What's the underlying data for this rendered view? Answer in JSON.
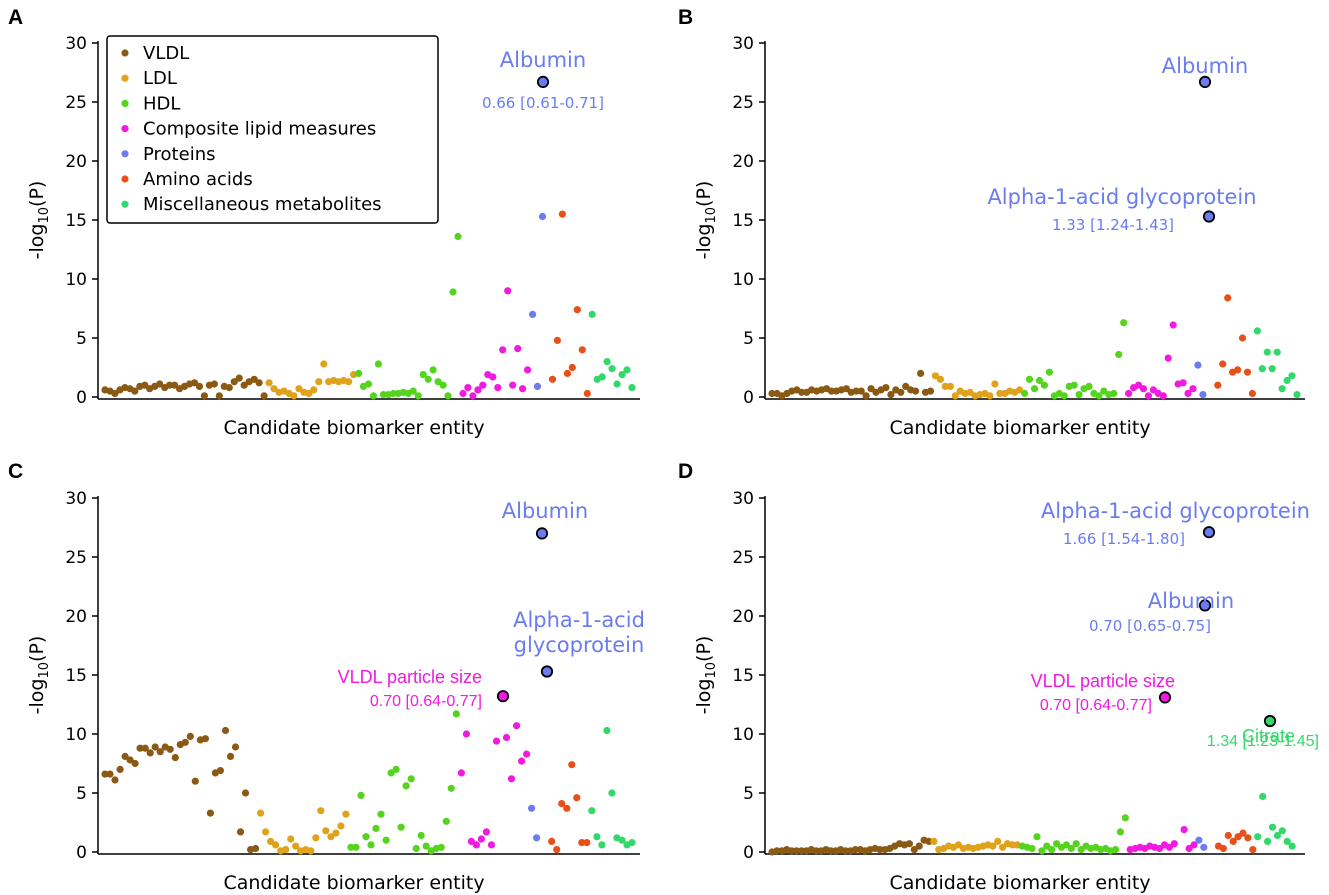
{
  "chart_data": [
    {
      "panel": "A",
      "type": "scatter",
      "xlabel": "Candidate biomarker entity",
      "ylabel": "-log10(P)",
      "ylim": [
        0,
        30
      ],
      "yticks": [
        "0",
        "5",
        "10",
        "15",
        "20",
        "25",
        "30"
      ],
      "legend": {
        "placement": "top-left",
        "entries": [
          {
            "name": "VLDL",
            "color": "#8a5a14"
          },
          {
            "name": "LDL",
            "color": "#e0a21a"
          },
          {
            "name": "HDL",
            "color": "#55d41d"
          },
          {
            "name": "Composite lipid measures",
            "color": "#f01ae0"
          },
          {
            "name": "Proteins",
            "color": "#6a7cf0"
          },
          {
            "name": "Amino acids",
            "color": "#e8501a"
          },
          {
            "name": "Miscellaneous metabolites",
            "color": "#33d86a"
          }
        ]
      },
      "series": [
        {
          "name": "VLDL",
          "values": [
            0.6,
            0.5,
            0.3,
            0.6,
            0.8,
            0.7,
            0.5,
            0.9,
            1.0,
            0.7,
            0.9,
            1.1,
            0.8,
            1.0,
            1.0,
            0.7,
            0.9,
            1.1,
            1.2,
            0.9,
            0.1,
            1.0,
            1.1,
            0.1,
            0.9,
            0.8,
            1.3,
            1.6,
            1.0,
            1.3,
            1.5,
            1.2,
            0.1
          ]
        },
        {
          "name": "LDL",
          "values": [
            1.2,
            0.7,
            0.4,
            0.5,
            0.3,
            0.1,
            0.7,
            0.4,
            0.3,
            0.6,
            1.3,
            2.8,
            1.3,
            1.4,
            1.3,
            1.4,
            1.3,
            1.9
          ]
        },
        {
          "name": "HDL",
          "values": [
            2.0,
            0.9,
            1.1,
            0.1,
            2.8,
            0.2,
            0.2,
            0.3,
            0.3,
            0.4,
            0.3,
            0.5,
            0.1,
            1.9,
            1.5,
            2.3,
            1.3,
            1.0,
            0.1,
            8.9,
            13.6
          ]
        },
        {
          "name": "Composite lipid measures",
          "values": [
            0.3,
            0.8,
            0.1,
            0.6,
            1.0,
            1.9,
            1.7,
            0.8,
            4.0,
            9.0,
            1.0,
            4.1,
            0.7,
            2.3
          ]
        },
        {
          "name": "Proteins",
          "values": [
            7.0,
            0.9,
            15.3,
            26.7
          ]
        },
        {
          "name": "Amino acids",
          "values": [
            1.5,
            4.8,
            15.5,
            2.0,
            2.5,
            7.4,
            4.0,
            0.3
          ]
        },
        {
          "name": "Miscellaneous metabolites",
          "values": [
            7.0,
            1.5,
            1.7,
            3.0,
            2.4,
            1.1,
            1.9,
            2.3,
            0.8
          ]
        }
      ],
      "annotations": [
        {
          "name": "Albumin",
          "ci": "0.66 [0.61-0.71]",
          "y": 26.7,
          "color": "#6a7cf0"
        }
      ]
    },
    {
      "panel": "B",
      "type": "scatter",
      "xlabel": "Candidate biomarker entity",
      "ylabel": "-log10(P)",
      "ylim": [
        0,
        30
      ],
      "yticks": [
        "0",
        "5",
        "10",
        "15",
        "20",
        "25",
        "30"
      ],
      "series": [
        {
          "name": "VLDL",
          "values": [
            0.3,
            0.3,
            0.1,
            0.3,
            0.5,
            0.6,
            0.4,
            0.4,
            0.6,
            0.5,
            0.6,
            0.7,
            0.5,
            0.5,
            0.6,
            0.7,
            0.4,
            0.5,
            0.5,
            0.1,
            0.7,
            0.4,
            0.6,
            0.8,
            0.2,
            0.6,
            0.4,
            0.9,
            0.6,
            0.5,
            2.0,
            0.4,
            0.5
          ]
        },
        {
          "name": "LDL",
          "values": [
            1.8,
            1.5,
            0.9,
            0.9,
            0.1,
            0.5,
            0.3,
            0.4,
            0.1,
            0.2,
            0.3,
            0.1,
            1.1,
            0.3,
            0.3,
            0.5,
            0.4,
            0.6
          ]
        },
        {
          "name": "HDL",
          "values": [
            0.3,
            1.5,
            0.7,
            1.4,
            1.0,
            2.1,
            0.1,
            0.3,
            0.1,
            0.9,
            1.0,
            0.2,
            0.7,
            0.9,
            0.3,
            0.1,
            0.5,
            0.2,
            0.3,
            3.6,
            6.3
          ]
        },
        {
          "name": "Composite lipid measures",
          "values": [
            0.3,
            0.8,
            1.0,
            0.7,
            0.1,
            0.6,
            0.3,
            0.1,
            3.3,
            6.1,
            1.1,
            1.2,
            0.3,
            0.7
          ]
        },
        {
          "name": "Proteins",
          "values": [
            2.7,
            0.2,
            15.3,
            26.7
          ]
        },
        {
          "name": "Amino acids",
          "values": [
            1.0,
            2.8,
            8.4,
            2.1,
            2.3,
            5.0,
            2.1,
            0.3
          ]
        },
        {
          "name": "Miscellaneous metabolites",
          "values": [
            5.6,
            2.4,
            3.8,
            2.4,
            3.8,
            0.7,
            1.4,
            1.8,
            0.2
          ]
        }
      ],
      "annotations": [
        {
          "name": "Albumin",
          "ci": "",
          "y": 26.7,
          "color": "#6a7cf0"
        },
        {
          "name": "Alpha-1-acid glycoprotein",
          "ci": "1.33 [1.24-1.43]",
          "y": 15.3,
          "color": "#6a7cf0"
        }
      ]
    },
    {
      "panel": "C",
      "type": "scatter",
      "xlabel": "Candidate biomarker entity",
      "ylabel": "-log10(P)",
      "ylim": [
        0,
        30
      ],
      "yticks": [
        "0",
        "5",
        "10",
        "15",
        "20",
        "25",
        "30"
      ],
      "series": [
        {
          "name": "VLDL",
          "values": [
            6.6,
            6.6,
            6.1,
            7.0,
            8.1,
            7.8,
            7.5,
            8.8,
            8.8,
            8.4,
            8.9,
            8.5,
            8.9,
            8.7,
            8.0,
            9.1,
            9.3,
            9.8,
            6.0,
            9.5,
            9.6,
            3.3,
            6.7,
            6.9,
            10.3,
            8.1,
            8.9,
            1.7,
            5.0,
            0.2,
            0.3
          ]
        },
        {
          "name": "LDL",
          "values": [
            3.3,
            1.7,
            0.9,
            0.6,
            0.1,
            0.2,
            1.1,
            0.5,
            0.1,
            0.2,
            0.1,
            1.2,
            3.5,
            1.8,
            1.3,
            1.6,
            2.2,
            3.2
          ]
        },
        {
          "name": "HDL",
          "values": [
            0.4,
            0.4,
            4.8,
            1.3,
            0.6,
            2.0,
            3.2,
            1.0,
            6.7,
            7.0,
            2.1,
            5.6,
            6.2,
            0.3,
            1.4,
            0.5,
            0.1,
            0.3,
            0.4,
            2.6,
            5.4,
            11.7
          ]
        },
        {
          "name": "Composite lipid measures",
          "values": [
            6.7,
            10.0,
            0.9,
            0.6,
            1.1,
            1.7,
            0.6,
            9.4,
            13.2,
            9.7,
            6.2,
            10.7,
            7.7,
            8.3
          ]
        },
        {
          "name": "Proteins",
          "values": [
            3.7,
            1.2,
            15.3,
            27.0
          ]
        },
        {
          "name": "Amino acids",
          "values": [
            0.9,
            0.2,
            4.1,
            3.7,
            7.4,
            4.6,
            0.8,
            0.8
          ]
        },
        {
          "name": "Miscellaneous metabolites",
          "values": [
            3.5,
            1.3,
            0.6,
            10.3,
            5.0,
            1.2,
            1.0,
            0.6,
            0.8
          ]
        }
      ],
      "annotations": [
        {
          "name": "Albumin",
          "ci": "",
          "y": 27.0,
          "color": "#6a7cf0"
        },
        {
          "name": "Alpha-1-acid",
          "name2": "glycoprotein",
          "ci": "",
          "y": 15.3,
          "color": "#6a7cf0"
        },
        {
          "name": "VLDL particle size",
          "ci": "0.70 [0.64-0.77]",
          "y": 13.2,
          "color": "#f01ae0"
        }
      ]
    },
    {
      "panel": "D",
      "type": "scatter",
      "xlabel": "Candidate biomarker entity",
      "ylabel": "-log10(P)",
      "ylim": [
        0,
        30
      ],
      "yticks": [
        "0",
        "5",
        "10",
        "15",
        "20",
        "25",
        "30"
      ],
      "series": [
        {
          "name": "VLDL",
          "values": [
            0.0,
            0.1,
            0.1,
            0.2,
            0.1,
            0.1,
            0.1,
            0.1,
            0.2,
            0.1,
            0.1,
            0.2,
            0.1,
            0.1,
            0.2,
            0.1,
            0.1,
            0.2,
            0.2,
            0.1,
            0.2,
            0.3,
            0.2,
            0.2,
            0.3,
            0.5,
            0.7,
            0.6,
            0.7,
            0.2,
            0.5,
            1.0,
            0.9
          ]
        },
        {
          "name": "LDL",
          "values": [
            0.9,
            0.2,
            0.3,
            0.5,
            0.4,
            0.6,
            0.3,
            0.4,
            0.3,
            0.4,
            0.5,
            0.6,
            0.5,
            0.9,
            0.4,
            0.7,
            0.6,
            0.6
          ]
        },
        {
          "name": "HDL",
          "values": [
            0.5,
            0.4,
            0.3,
            1.3,
            0.1,
            0.5,
            0.2,
            0.7,
            0.4,
            0.6,
            0.3,
            0.7,
            0.2,
            0.5,
            0.3,
            0.4,
            0.2,
            0.3,
            0.1,
            0.2,
            1.7,
            2.9
          ]
        },
        {
          "name": "Composite lipid measures",
          "values": [
            0.2,
            0.3,
            0.4,
            0.3,
            0.5,
            0.4,
            0.3,
            0.6,
            0.4,
            0.7,
            13.1,
            1.9,
            0.3,
            0.6
          ]
        },
        {
          "name": "Proteins",
          "values": [
            1.0,
            0.4,
            20.9,
            27.1
          ]
        },
        {
          "name": "Amino acids",
          "values": [
            0.5,
            0.3,
            1.4,
            0.9,
            1.3,
            1.6,
            1.2,
            0.2
          ]
        },
        {
          "name": "Miscellaneous metabolites",
          "values": [
            1.3,
            4.7,
            0.9,
            2.1,
            1.4,
            1.8,
            0.9,
            0.5,
            11.1
          ]
        }
      ],
      "annotations": [
        {
          "name": "Alpha-1-acid glycoprotein",
          "ci": "1.66 [1.54-1.80]",
          "y": 27.1,
          "color": "#6a7cf0"
        },
        {
          "name": "Albumin",
          "ci": "0.70 [0.65-0.75]",
          "y": 20.9,
          "color": "#6a7cf0"
        },
        {
          "name": "VLDL particle size",
          "ci": "0.70 [0.64-0.77]",
          "y": 13.1,
          "color": "#f01ae0"
        },
        {
          "name": "Citrate",
          "ci": "1.34 [1.23-1.45]",
          "y": 11.1,
          "color": "#33d86a"
        }
      ]
    }
  ]
}
